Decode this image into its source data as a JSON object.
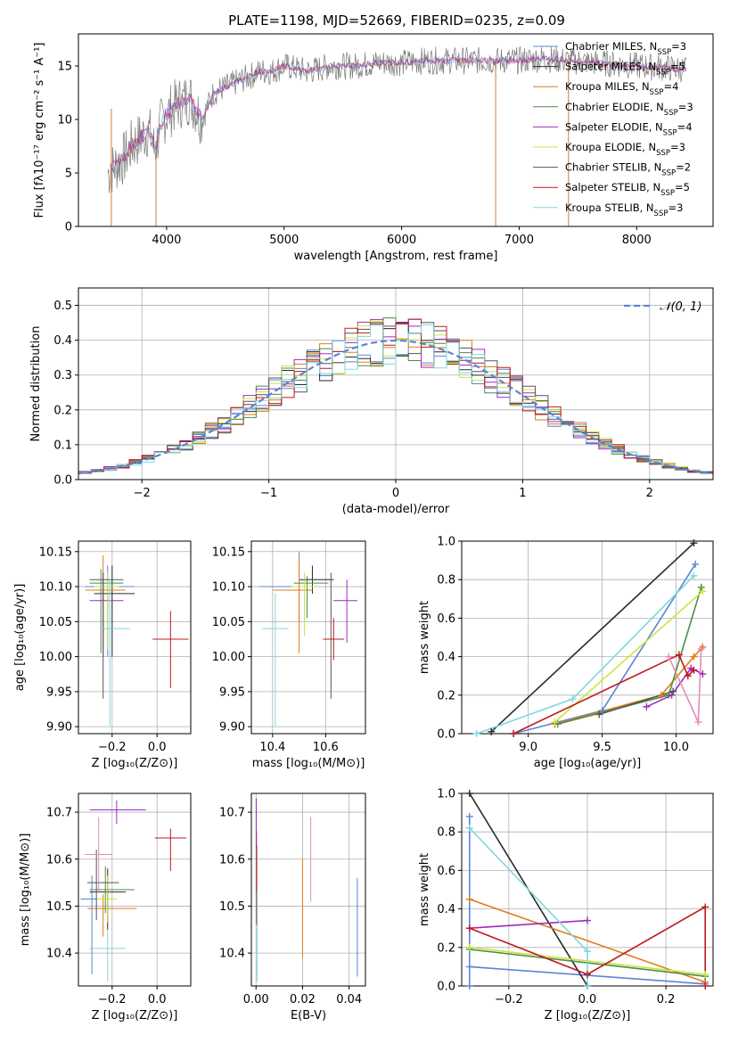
{
  "title": "PLATE=1198, MJD=52669, FIBERID=0235, z=0.09",
  "colors": {
    "Chabrier MILES": "#5b84d6",
    "Salpeter MILES": "#2a2a2a",
    "Kroupa MILES": "#e07a18",
    "Chabrier ELODIE": "#4e8c4a",
    "Salpeter ELODIE": "#a02ac0",
    "Kroupa ELODIE": "#c8e640",
    "Chabrier STELIB": "#555555",
    "Salpeter STELIB": "#c0181c",
    "Kroupa STELIB": "#7fd8e0",
    "gaussian": "#5b84d6"
  },
  "chart_data": [
    {
      "id": "spectrum",
      "type": "line",
      "title": "PLATE=1198, MJD=52669, FIBERID=0235, z=0.09",
      "xlabel": "wavelength [Angstrom, rest frame]",
      "ylabel": "Flux [fλ10⁻¹⁷ erg cm⁻² s⁻¹ A⁻¹]",
      "xlim": [
        3250,
        8650
      ],
      "ylim": [
        0,
        18
      ],
      "xticks": [
        4000,
        5000,
        6000,
        7000,
        8000
      ],
      "yticks": [
        0,
        5,
        10,
        15
      ],
      "grid": false,
      "legend_position": "top-right",
      "legend": [
        {
          "label": "Chabrier MILES, N",
          "sub": "SSP",
          "tail": "=3"
        },
        {
          "label": "Salpeter MILES, N",
          "sub": "SSP",
          "tail": "=5"
        },
        {
          "label": "Kroupa MILES, N",
          "sub": "SSP",
          "tail": "=4"
        },
        {
          "label": "Chabrier ELODIE, N",
          "sub": "SSP",
          "tail": "=3"
        },
        {
          "label": "Salpeter ELODIE, N",
          "sub": "SSP",
          "tail": "=4"
        },
        {
          "label": "Kroupa ELODIE, N",
          "sub": "SSP",
          "tail": "=3"
        },
        {
          "label": "Chabrier STELIB, N",
          "sub": "SSP",
          "tail": "=2"
        },
        {
          "label": "Salpeter STELIB, N",
          "sub": "SSP",
          "tail": "=5"
        },
        {
          "label": "Kroupa STELIB, N",
          "sub": "SSP",
          "tail": "=3"
        }
      ],
      "series_data": {
        "data_x": [
          3500,
          3550,
          3600,
          3650,
          3700,
          3750,
          3800,
          3850,
          3900,
          3950,
          4000,
          4100,
          4200,
          4300,
          4400,
          4500,
          4600,
          4700,
          4800,
          4900,
          5000,
          5200,
          5400,
          5600,
          5800,
          6000,
          6200,
          6400,
          6600,
          6800,
          7000,
          7200,
          7400
        ],
        "data_y": [
          5.0,
          5.5,
          6.0,
          6.5,
          7.5,
          8.0,
          8.5,
          9.0,
          7.0,
          9.5,
          10.5,
          11.5,
          12.0,
          10.0,
          12.5,
          13.0,
          13.5,
          14.0,
          14.5,
          14.5,
          15.0,
          14.5,
          15.0,
          15.0,
          15.3,
          15.3,
          15.5,
          15.5,
          15.5,
          15.5,
          15.5,
          15.7,
          15.5
        ],
        "spikes": [
          {
            "x": 3530,
            "low": 0,
            "high": 11
          },
          {
            "x": 3910,
            "low": 0,
            "high": 8
          },
          {
            "x": 6800,
            "low": 0,
            "high": 15
          },
          {
            "x": 7420,
            "low": 0,
            "high": 16
          }
        ]
      }
    },
    {
      "id": "residuals",
      "type": "histogram",
      "xlabel": "(data-model)/error",
      "ylabel": "Normed distribution",
      "xlim": [
        -2.5,
        2.5
      ],
      "ylim": [
        0,
        0.55
      ],
      "xticks": [
        -2,
        -1,
        0,
        1,
        2
      ],
      "yticks": [
        0.0,
        0.1,
        0.2,
        0.3,
        0.4,
        0.5
      ],
      "grid": true,
      "legend_position": "top-right",
      "legend": [
        {
          "label": "𝒩(0, 1)"
        }
      ],
      "bin_width": 0.1
    },
    {
      "id": "age-vs-Z",
      "type": "scatter",
      "xlabel": "Z [log₁₀(Z/Z⊙)]",
      "ylabel": "age  [log₁₀(age/yr)]",
      "xlim": [
        -0.35,
        0.15
      ],
      "ylim": [
        9.89,
        10.165
      ],
      "xticks": [
        -0.2,
        0.0
      ],
      "yticks": [
        9.9,
        9.95,
        10.0,
        10.05,
        10.1,
        10.15
      ],
      "grid": true,
      "points": [
        {
          "name": "Chabrier MILES",
          "x": -0.22,
          "xerr": [
            0.1,
            0.12
          ],
          "y": 10.1,
          "yerr": [
            0.1,
            0.03
          ]
        },
        {
          "name": "Salpeter MILES",
          "x": -0.2,
          "xerr": [
            0.08,
            0.1
          ],
          "y": 10.09,
          "yerr": [
            0.09,
            0.04
          ]
        },
        {
          "name": "Kroupa MILES",
          "x": -0.24,
          "xerr": [
            0.08,
            0.1
          ],
          "y": 10.095,
          "yerr": [
            0.08,
            0.05
          ]
        },
        {
          "name": "Chabrier ELODIE",
          "x": -0.25,
          "xerr": [
            0.05,
            0.1
          ],
          "y": 10.105,
          "yerr": [
            0.1,
            0.02
          ]
        },
        {
          "name": "Salpeter ELODIE",
          "x": -0.24,
          "xerr": [
            0.06,
            0.09
          ],
          "y": 10.08,
          "yerr": [
            0.08,
            0.04
          ]
        },
        {
          "name": "Kroupa ELODIE",
          "x": -0.22,
          "xerr": [
            0.06,
            0.05
          ],
          "y": 10.1,
          "yerr": [
            0.09,
            0.02
          ]
        },
        {
          "name": "Chabrier STELIB",
          "x": -0.24,
          "xerr": [
            0.06,
            0.09
          ],
          "y": 10.11,
          "yerr": [
            0.17,
            0.01
          ]
        },
        {
          "name": "Salpeter STELIB",
          "x": 0.06,
          "xerr": [
            0.08,
            0.08
          ],
          "y": 10.025,
          "yerr": [
            0.07,
            0.04
          ]
        },
        {
          "name": "Kroupa STELIB",
          "x": -0.21,
          "xerr": [
            0.04,
            0.09
          ],
          "y": 10.04,
          "yerr": [
            0.14,
            0.07
          ]
        }
      ]
    },
    {
      "id": "age-vs-mass",
      "type": "scatter",
      "xlabel": "mass [log₁₀(M/M⊙)]",
      "xlim": [
        10.32,
        10.75
      ],
      "ylim": [
        9.89,
        10.165
      ],
      "xticks": [
        10.4,
        10.6
      ],
      "yticks": [
        9.9,
        9.95,
        10.0,
        10.05,
        10.1,
        10.15
      ],
      "grid": true,
      "points": [
        {
          "name": "Chabrier MILES",
          "x": 10.5,
          "xerr": [
            0.15,
            0.05
          ],
          "y": 10.1,
          "yerr": [
            0.05,
            0.05
          ]
        },
        {
          "name": "Salpeter MILES",
          "x": 10.55,
          "xerr": [
            0.05,
            0.08
          ],
          "y": 10.11,
          "yerr": [
            0.02,
            0.02
          ]
        },
        {
          "name": "Kroupa MILES",
          "x": 10.5,
          "xerr": [
            0.1,
            0.05
          ],
          "y": 10.095,
          "yerr": [
            0.09,
            0.05
          ]
        },
        {
          "name": "Chabrier ELODIE",
          "x": 10.53,
          "xerr": [
            0.05,
            0.08
          ],
          "y": 10.105,
          "yerr": [
            0.05,
            0.01
          ]
        },
        {
          "name": "Salpeter ELODIE",
          "x": 10.68,
          "xerr": [
            0.05,
            0.04
          ],
          "y": 10.08,
          "yerr": [
            0.06,
            0.03
          ]
        },
        {
          "name": "Kroupa ELODIE",
          "x": 10.52,
          "xerr": [
            0.05,
            0.04
          ],
          "y": 10.1,
          "yerr": [
            0.07,
            0.02
          ]
        },
        {
          "name": "Chabrier STELIB",
          "x": 10.62,
          "xerr": [
            0.1,
            0.01
          ],
          "y": 10.11,
          "yerr": [
            0.17,
            0.01
          ]
        },
        {
          "name": "Salpeter STELIB",
          "x": 10.63,
          "xerr": [
            0.04,
            0.04
          ],
          "y": 10.025,
          "yerr": [
            0.03,
            0.03
          ]
        },
        {
          "name": "Kroupa STELIB",
          "x": 10.41,
          "xerr": [
            0.05,
            0.05
          ],
          "y": 10.04,
          "yerr": [
            0.14,
            0.05
          ]
        }
      ]
    },
    {
      "id": "mass-weight-vs-age",
      "type": "line",
      "xlabel": "age  [log₁₀(age/yr)]",
      "ylabel": "mass weight",
      "xlim": [
        8.55,
        10.25
      ],
      "ylim": [
        0,
        1.0
      ],
      "xticks": [
        9.0,
        9.5,
        10.0
      ],
      "yticks": [
        0.0,
        0.2,
        0.4,
        0.6,
        0.8,
        1.0
      ],
      "grid": true,
      "series": [
        {
          "name": "Chabrier MILES",
          "x": [
            8.9,
            9.5,
            10.13
          ],
          "y": [
            0.0,
            0.12,
            0.88
          ]
        },
        {
          "name": "Salpeter MILES",
          "x": [
            8.75,
            10.12
          ],
          "y": [
            0.01,
            0.99
          ]
        },
        {
          "name": "Kroupa MILES",
          "x": [
            9.18,
            9.9,
            10.12,
            10.18
          ],
          "y": [
            0.05,
            0.2,
            0.4,
            0.45
          ]
        },
        {
          "name": "Chabrier ELODIE",
          "x": [
            9.2,
            9.95,
            10.17
          ],
          "y": [
            0.05,
            0.2,
            0.76
          ]
        },
        {
          "name": "Salpeter ELODIE",
          "x": [
            9.8,
            9.97,
            10.1,
            10.18
          ],
          "y": [
            0.14,
            0.2,
            0.34,
            0.31
          ]
        },
        {
          "name": "Kroupa ELODIE",
          "x": [
            9.18,
            10.18
          ],
          "y": [
            0.06,
            0.74
          ]
        },
        {
          "name": "Chabrier STELIB",
          "x": [
            9.48,
            9.98
          ],
          "y": [
            0.1,
            0.22
          ]
        },
        {
          "name": "Salpeter STELIB",
          "x": [
            8.9,
            10.02,
            10.08,
            10.12
          ],
          "y": [
            0.0,
            0.41,
            0.3,
            0.33
          ]
        },
        {
          "name": "Kroupa STELIB",
          "x": [
            8.65,
            9.3,
            10.12
          ],
          "y": [
            0.0,
            0.18,
            0.82
          ]
        },
        {
          "name": "Salpeter ELODIE pink",
          "x": [
            9.95,
            10.15,
            10.17
          ],
          "y": [
            0.4,
            0.06,
            0.44
          ]
        }
      ]
    },
    {
      "id": "mass-vs-Z",
      "type": "scatter",
      "xlabel": "Z [log₁₀(Z/Z⊙)]",
      "ylabel": "mass [log₁₀(M/M⊙)]",
      "xlim": [
        -0.35,
        0.15
      ],
      "ylim": [
        10.33,
        10.74
      ],
      "xticks": [
        -0.2,
        0.0
      ],
      "yticks": [
        10.4,
        10.5,
        10.6,
        10.7
      ],
      "grid": true,
      "points": [
        {
          "name": "Chabrier MILES",
          "x": -0.29,
          "xerr": [
            0.05,
            0.07
          ],
          "y": 10.515,
          "yerr": [
            0.16,
            0.05
          ]
        },
        {
          "name": "Salpeter MILES",
          "x": -0.22,
          "xerr": [
            0.08,
            0.08
          ],
          "y": 10.53,
          "yerr": [
            0.08,
            0.05
          ]
        },
        {
          "name": "Kroupa MILES",
          "x": -0.24,
          "xerr": [
            0.07,
            0.15
          ],
          "y": 10.495,
          "yerr": [
            0.06,
            0.03
          ]
        },
        {
          "name": "Chabrier ELODIE",
          "x": -0.23,
          "xerr": [
            0.07,
            0.13
          ],
          "y": 10.535,
          "yerr": [
            0.05,
            0.05
          ]
        },
        {
          "name": "Salpeter ELODIE",
          "x": -0.18,
          "xerr": [
            0.12,
            0.13
          ],
          "y": 10.705,
          "yerr": [
            0.03,
            0.02
          ]
        },
        {
          "name": "Kroupa ELODIE",
          "x": -0.22,
          "xerr": [
            0.05,
            0.04
          ],
          "y": 10.515,
          "yerr": [
            0.05,
            0.05
          ]
        },
        {
          "name": "Chabrier STELIB",
          "x": -0.27,
          "xerr": [
            0.04,
            0.1
          ],
          "y": 10.55,
          "yerr": [
            0.08,
            0.07
          ]
        },
        {
          "name": "Salpeter STELIB",
          "x": 0.06,
          "xerr": [
            0.07,
            0.07
          ],
          "y": 10.645,
          "yerr": [
            0.07,
            0.02
          ]
        },
        {
          "name": "Kroupa STELIB",
          "x": -0.22,
          "xerr": [
            0.08,
            0.08
          ],
          "y": 10.41,
          "yerr": [
            0.07,
            0.04
          ]
        },
        {
          "name": "Kroupa MILES pink",
          "x": -0.26,
          "xerr": [
            0.06,
            0.06
          ],
          "y": 10.61,
          "yerr": [
            0.08,
            0.08
          ]
        }
      ]
    },
    {
      "id": "mass-vs-ebv",
      "type": "scatter",
      "xlabel": "E(B-V)",
      "xlim": [
        -0.002,
        0.047
      ],
      "ylim": [
        10.33,
        10.74
      ],
      "xticks": [
        0.0,
        0.02,
        0.04
      ],
      "yticks": [
        10.4,
        10.5,
        10.6,
        10.7
      ],
      "grid": true,
      "points": [
        {
          "name": "Chabrier MILES",
          "x": 0.0435,
          "y": 10.46,
          "yerr": [
            0.11,
            0.1
          ]
        },
        {
          "name": "Kroupa MILES",
          "x": 0.02,
          "y": 10.5,
          "yerr": [
            0.11,
            0.1
          ]
        },
        {
          "name": "Chabrier STELIB",
          "x": 0.0003,
          "y": 10.55,
          "yerr": [
            0.09,
            0.08
          ]
        },
        {
          "name": "Salpeter STELIB",
          "x": 0.0002,
          "y": 10.6,
          "yerr": [
            0.07,
            0.06
          ]
        },
        {
          "name": "Salpeter ELODIE",
          "x": 0.0001,
          "y": 10.67,
          "yerr": [
            0.05,
            0.06
          ]
        },
        {
          "name": "Kroupa STELIB",
          "x": 0.0005,
          "y": 10.4,
          "yerr": [
            0.06,
            0.06
          ]
        },
        {
          "name": "Kroupa MILES pink",
          "x": 0.0235,
          "y": 10.57,
          "yerr": [
            0.06,
            0.12
          ]
        }
      ]
    },
    {
      "id": "mass-weight-vs-Z",
      "type": "line",
      "xlabel": "Z [log₁₀(Z/Z⊙)]",
      "ylabel": "mass weight",
      "xlim": [
        -0.32,
        0.32
      ],
      "ylim": [
        0,
        1.0
      ],
      "xticks": [
        -0.2,
        0.0,
        0.2
      ],
      "yticks": [
        0.0,
        0.2,
        0.4,
        0.6,
        0.8,
        1.0
      ],
      "grid": true,
      "series": [
        {
          "name": "Chabrier MILES",
          "x": [
            -0.3,
            0.3
          ],
          "y": [
            0.1,
            0.01
          ]
        },
        {
          "name": "Salpeter MILES",
          "x": [
            -0.3,
            0.0
          ],
          "y": [
            1.0,
            0.0
          ]
        },
        {
          "name": "Kroupa MILES",
          "x": [
            -0.3,
            0.3
          ],
          "y": [
            0.45,
            0.02
          ]
        },
        {
          "name": "Chabrier ELODIE",
          "x": [
            -0.3,
            0.3
          ],
          "y": [
            0.19,
            0.05
          ]
        },
        {
          "name": "Salpeter ELODIE",
          "x": [
            -0.3,
            0.0
          ],
          "y": [
            0.3,
            0.34
          ]
        },
        {
          "name": "Kroupa ELODIE",
          "x": [
            -0.3,
            0.3
          ],
          "y": [
            0.2,
            0.06
          ]
        },
        {
          "name": "Salpeter STELIB",
          "x": [
            -0.3,
            0.0,
            0.3,
            0.3
          ],
          "y": [
            0.3,
            0.06,
            0.41,
            0.0
          ]
        },
        {
          "name": "Kroupa STELIB",
          "x": [
            -0.3,
            0.0,
            0.0
          ],
          "y": [
            0.82,
            0.18,
            0.0
          ]
        },
        {
          "name": "Chabrier MILES upper",
          "x": [
            -0.3,
            -0.3
          ],
          "y": [
            0.88,
            0.0
          ]
        }
      ]
    }
  ]
}
